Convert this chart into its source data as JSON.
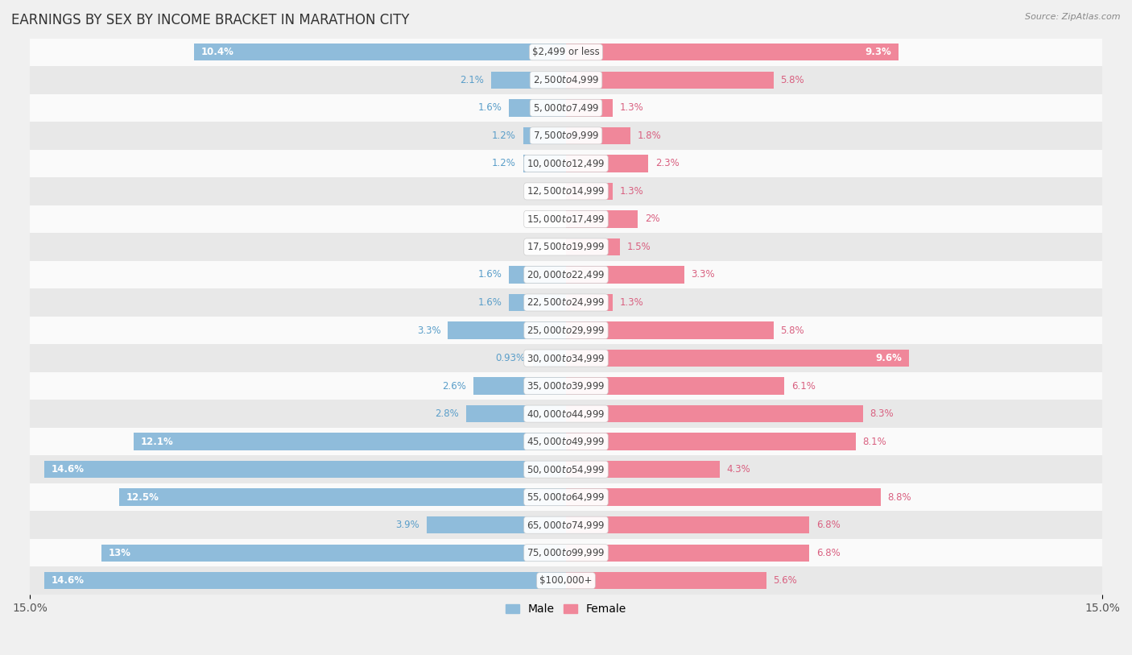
{
  "title": "EARNINGS BY SEX BY INCOME BRACKET IN MARATHON CITY",
  "source": "Source: ZipAtlas.com",
  "categories": [
    "$2,499 or less",
    "$2,500 to $4,999",
    "$5,000 to $7,499",
    "$7,500 to $9,999",
    "$10,000 to $12,499",
    "$12,500 to $14,999",
    "$15,000 to $17,499",
    "$17,500 to $19,999",
    "$20,000 to $22,499",
    "$22,500 to $24,999",
    "$25,000 to $29,999",
    "$30,000 to $34,999",
    "$35,000 to $39,999",
    "$40,000 to $44,999",
    "$45,000 to $49,999",
    "$50,000 to $54,999",
    "$55,000 to $64,999",
    "$65,000 to $74,999",
    "$75,000 to $99,999",
    "$100,000+"
  ],
  "male_values": [
    10.4,
    2.1,
    1.6,
    1.2,
    1.2,
    0.0,
    0.0,
    0.0,
    1.6,
    1.6,
    3.3,
    0.93,
    2.6,
    2.8,
    12.1,
    14.6,
    12.5,
    3.9,
    13.0,
    14.6
  ],
  "female_values": [
    9.3,
    5.8,
    1.3,
    1.8,
    2.3,
    1.3,
    2.0,
    1.5,
    3.3,
    1.3,
    5.8,
    9.6,
    6.1,
    8.3,
    8.1,
    4.3,
    8.8,
    6.8,
    6.8,
    5.6
  ],
  "male_color": "#8fbcdb",
  "female_color": "#f0879a",
  "male_label_color": "#5a9ec9",
  "female_label_color": "#d96080",
  "xlim": 15.0,
  "title_fontsize": 12,
  "bar_label_fontsize": 8.5,
  "category_fontsize": 8.5,
  "bar_height": 0.62,
  "background_color": "#f0f0f0",
  "row_colors": [
    "#fafafa",
    "#e8e8e8"
  ]
}
